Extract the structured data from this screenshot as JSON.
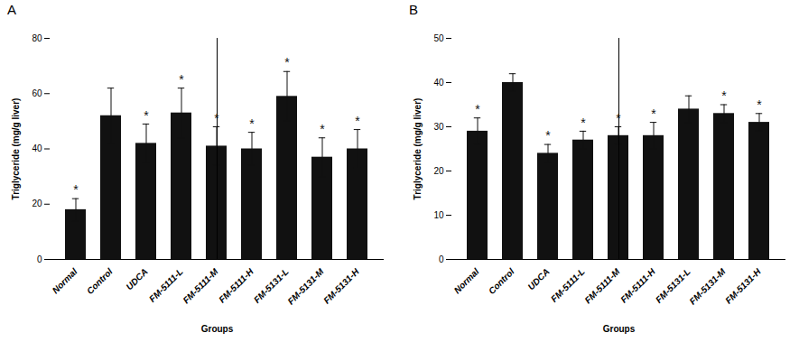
{
  "chart_data": [
    {
      "type": "bar",
      "title": "A",
      "categories": [
        "Normal",
        "Control",
        "UDCA",
        "FM-5111-L",
        "FM-5111-M",
        "FM-5111-H",
        "FM-5131-L",
        "FM-5131-M",
        "FM-5131-H"
      ],
      "values": [
        18,
        52,
        42,
        53,
        41,
        40,
        59,
        37,
        40
      ],
      "errors": [
        4,
        10,
        7,
        9,
        7,
        6,
        9,
        7,
        7
      ],
      "annotations": [
        {
          "category": "Normal",
          "text": "*"
        },
        {
          "category": "UDCA",
          "text": "*"
        },
        {
          "category": "FM-5111-L",
          "text": "*"
        },
        {
          "category": "FM-5111-M",
          "text": "*"
        },
        {
          "category": "FM-5111-H",
          "text": "*"
        },
        {
          "category": "FM-5131-L",
          "text": "*"
        },
        {
          "category": "FM-5131-M",
          "text": "*"
        },
        {
          "category": "FM-5131-H",
          "text": "*"
        }
      ],
      "ylabel": "Triglyceride (mg/g liver)",
      "xlabel": "Groups",
      "color": "#111111",
      "ylim": [
        0,
        80
      ],
      "yticks": [
        0,
        20,
        40,
        60,
        80
      ],
      "grid": false
    },
    {
      "type": "bar",
      "title": "B",
      "categories": [
        "Normal",
        "Control",
        "UDCA",
        "FM-5111-L",
        "FM-5111-M",
        "FM-5111-H",
        "FM-5131-L",
        "FM-5131-M",
        "FM-5131-H"
      ],
      "values": [
        29,
        40,
        24,
        27,
        28,
        28,
        34,
        33,
        31
      ],
      "errors": [
        3,
        2,
        2,
        2,
        2,
        3,
        3,
        2,
        2
      ],
      "annotations": [
        {
          "category": "Normal",
          "text": "*"
        },
        {
          "category": "UDCA",
          "text": "*"
        },
        {
          "category": "FM-5111-L",
          "text": "*"
        },
        {
          "category": "FM-5111-M",
          "text": "*"
        },
        {
          "category": "FM-5111-H",
          "text": "*"
        },
        {
          "category": "FM-5131-M",
          "text": "*"
        },
        {
          "category": "FM-5131-H",
          "text": "*"
        }
      ],
      "ylabel": "Triglyceride (mg/g liver)",
      "xlabel": "Groups",
      "color": "#111111",
      "ylim": [
        0,
        50
      ],
      "yticks": [
        0,
        10,
        20,
        30,
        40,
        50
      ],
      "grid": false
    }
  ]
}
